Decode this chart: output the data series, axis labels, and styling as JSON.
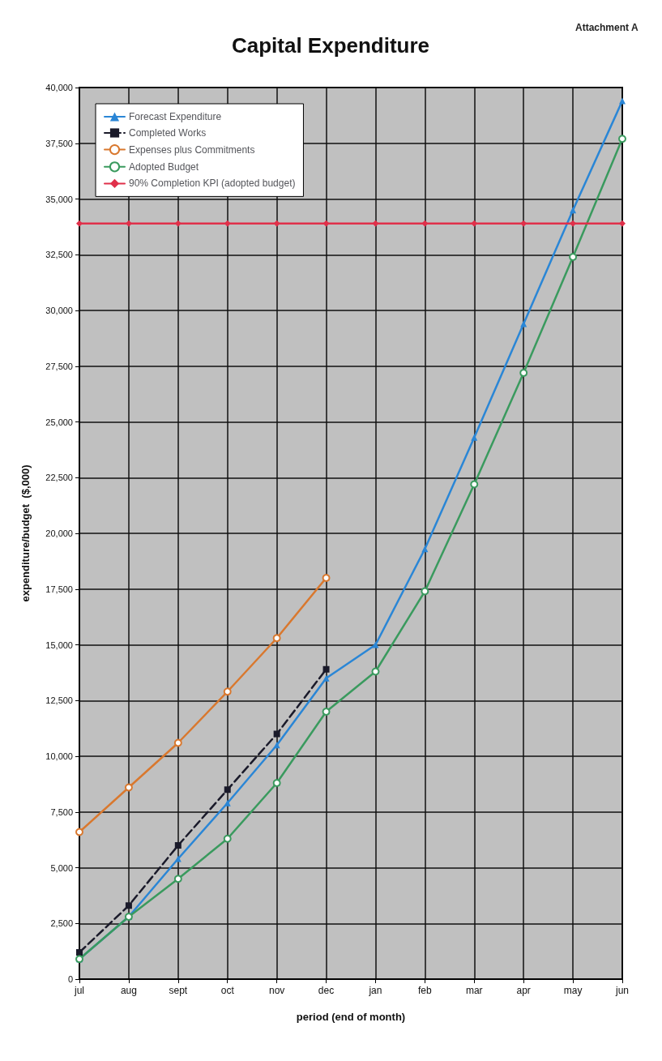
{
  "chart_data": {
    "type": "line",
    "title": "Capital Expenditure",
    "xlabel": "period (end of month)",
    "ylabel": "expenditure/budget  ($,000)",
    "annotations": [
      "Attachment A"
    ],
    "categories": [
      "jul",
      "aug",
      "sept",
      "oct",
      "nov",
      "dec",
      "jan",
      "feb",
      "mar",
      "apr",
      "may",
      "jun"
    ],
    "series": [
      {
        "name": "Forecast Expenditure",
        "color": "#2a86d6",
        "marker": "triangle",
        "line_style": "solid",
        "values": [
          900,
          2800,
          5400,
          7900,
          10500,
          13500,
          15000,
          19300,
          24300,
          29400,
          34500,
          39400
        ]
      },
      {
        "name": "Completed Works",
        "color": "#1a1a2a",
        "marker": "square",
        "line_style": "dashed",
        "values": [
          1200,
          3300,
          6000,
          8500,
          11000,
          13900,
          null,
          null,
          null,
          null,
          null,
          null
        ]
      },
      {
        "name": "Expenses plus Commitments",
        "color": "#d9782e",
        "marker": "circle",
        "line_style": "solid",
        "values": [
          6600,
          8600,
          10600,
          12900,
          15300,
          18000,
          null,
          null,
          null,
          null,
          null,
          null
        ]
      },
      {
        "name": "Adopted Budget",
        "color": "#3a9a5e",
        "marker": "circle",
        "line_style": "solid",
        "values": [
          900,
          2800,
          4500,
          6300,
          8800,
          12000,
          13800,
          17400,
          22200,
          27200,
          32400,
          37700
        ]
      },
      {
        "name": "90% Completion KPI (adopted budget)",
        "color": "#e0304a",
        "marker": "diamond",
        "line_style": "solid",
        "values": [
          33900,
          33900,
          33900,
          33900,
          33900,
          33900,
          33900,
          33900,
          33900,
          33900,
          33900,
          33900
        ]
      }
    ],
    "ylim": [
      0,
      40000
    ],
    "yticks": [
      0,
      {
        "value": 2500,
        "label": "2,500"
      },
      {
        "value": 5000,
        "label": "5,000"
      },
      {
        "value": 7500,
        "label": "7,500"
      },
      {
        "value": 10000,
        "label": "10,000"
      },
      {
        "value": 12500,
        "label": "12,500"
      },
      {
        "value": 15000,
        "label": "15,000"
      },
      {
        "value": 17500,
        "label": "17,500"
      },
      {
        "value": 20000,
        "label": "20,000"
      },
      {
        "value": 22500,
        "label": "22,500"
      },
      {
        "value": 25000,
        "label": "25,000"
      },
      {
        "value": 27500,
        "label": "27,500"
      },
      {
        "value": 30000,
        "label": "30,000"
      },
      {
        "value": 32500,
        "label": "32,500"
      },
      {
        "value": 35000,
        "label": "35,000"
      },
      {
        "value": 37500,
        "label": "37,500"
      },
      {
        "value": 40000,
        "label": "40,000"
      }
    ],
    "grid": true,
    "legend": "top left"
  }
}
